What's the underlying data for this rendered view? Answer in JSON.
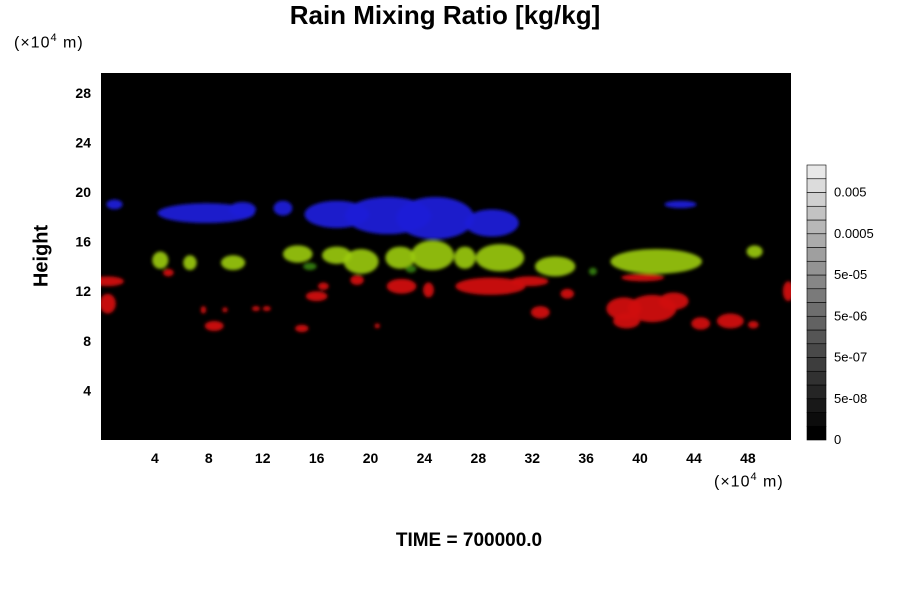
{
  "title": "Rain Mixing Ratio [kg/kg]",
  "y_unit": {
    "prefix": "(×10",
    "exp": "4",
    "suffix": " m)"
  },
  "x_unit": {
    "prefix": "(×10",
    "exp": "4",
    "suffix": " m)"
  },
  "time_label": "TIME = 700000.0",
  "colors": {
    "background": "#000000",
    "blue": "#1b1bd6",
    "yellow_green": "#9ccc12",
    "green": "#3a8a0c",
    "red": "#d01010"
  },
  "chart_data": {
    "type": "heatmap",
    "title": "Rain Mixing Ratio [kg/kg]",
    "xlabel": "",
    "ylabel": "Height",
    "xlim": [
      0,
      51.2
    ],
    "ylim": [
      0,
      29.6
    ],
    "xticks": [
      4,
      8,
      12,
      16,
      20,
      24,
      28,
      32,
      36,
      40,
      44,
      48
    ],
    "yticks": [
      4,
      8,
      12,
      16,
      20,
      24,
      28
    ],
    "grid": false,
    "colorbar": {
      "levels": 20,
      "tick_labels": [
        "0",
        "5e-08",
        "5e-07",
        "5e-06",
        "5e-05",
        "0.0005",
        "0.005"
      ],
      "label_level_index": [
        0,
        3,
        6,
        9,
        12,
        15,
        18
      ]
    },
    "regions": [
      {
        "name": "blue",
        "color": "#1b1bd6",
        "opacity": 0.95,
        "blobs": [
          {
            "x": 1.0,
            "y": 19.0,
            "rx": 0.6,
            "ry": 0.4
          },
          {
            "x": 7.8,
            "y": 18.3,
            "rx": 3.6,
            "ry": 0.8
          },
          {
            "x": 10.5,
            "y": 18.6,
            "rx": 1.0,
            "ry": 0.6
          },
          {
            "x": 13.5,
            "y": 18.7,
            "rx": 0.7,
            "ry": 0.6
          },
          {
            "x": 17.5,
            "y": 18.2,
            "rx": 2.4,
            "ry": 1.1
          },
          {
            "x": 21.3,
            "y": 18.1,
            "rx": 3.2,
            "ry": 1.5
          },
          {
            "x": 24.8,
            "y": 17.9,
            "rx": 2.9,
            "ry": 1.7
          },
          {
            "x": 29.0,
            "y": 17.5,
            "rx": 2.0,
            "ry": 1.1
          },
          {
            "x": 43.0,
            "y": 19.0,
            "rx": 1.2,
            "ry": 0.3
          }
        ]
      },
      {
        "name": "yellow-green",
        "color": "#9ccc12",
        "opacity": 0.9,
        "blobs": [
          {
            "x": 4.4,
            "y": 14.5,
            "rx": 0.6,
            "ry": 0.7
          },
          {
            "x": 6.6,
            "y": 14.3,
            "rx": 0.5,
            "ry": 0.6
          },
          {
            "x": 9.8,
            "y": 14.3,
            "rx": 0.9,
            "ry": 0.6
          },
          {
            "x": 14.6,
            "y": 15.0,
            "rx": 1.1,
            "ry": 0.7
          },
          {
            "x": 17.5,
            "y": 14.9,
            "rx": 1.1,
            "ry": 0.7
          },
          {
            "x": 19.3,
            "y": 14.4,
            "rx": 1.3,
            "ry": 1.0
          },
          {
            "x": 22.2,
            "y": 14.7,
            "rx": 1.1,
            "ry": 0.9
          },
          {
            "x": 24.6,
            "y": 14.9,
            "rx": 1.6,
            "ry": 1.2
          },
          {
            "x": 27.0,
            "y": 14.7,
            "rx": 0.8,
            "ry": 0.9
          },
          {
            "x": 29.6,
            "y": 14.7,
            "rx": 1.8,
            "ry": 1.1
          },
          {
            "x": 33.7,
            "y": 14.0,
            "rx": 1.5,
            "ry": 0.8
          },
          {
            "x": 41.2,
            "y": 14.4,
            "rx": 3.4,
            "ry": 1.0
          },
          {
            "x": 48.5,
            "y": 15.2,
            "rx": 0.6,
            "ry": 0.5
          }
        ]
      },
      {
        "name": "green",
        "color": "#3a8a0c",
        "opacity": 0.85,
        "blobs": [
          {
            "x": 15.5,
            "y": 14.0,
            "rx": 0.5,
            "ry": 0.3
          },
          {
            "x": 23.0,
            "y": 13.8,
            "rx": 0.4,
            "ry": 0.3
          },
          {
            "x": 36.5,
            "y": 13.6,
            "rx": 0.3,
            "ry": 0.3
          }
        ]
      },
      {
        "name": "red",
        "color": "#d01010",
        "opacity": 0.95,
        "blobs": [
          {
            "x": 0.5,
            "y": 12.8,
            "rx": 1.2,
            "ry": 0.4
          },
          {
            "x": 0.5,
            "y": 11.0,
            "rx": 0.6,
            "ry": 0.8
          },
          {
            "x": 5.0,
            "y": 13.5,
            "rx": 0.4,
            "ry": 0.3
          },
          {
            "x": 7.6,
            "y": 10.5,
            "rx": 0.2,
            "ry": 0.3
          },
          {
            "x": 8.4,
            "y": 9.2,
            "rx": 0.7,
            "ry": 0.4
          },
          {
            "x": 9.2,
            "y": 10.5,
            "rx": 0.2,
            "ry": 0.2
          },
          {
            "x": 11.5,
            "y": 10.6,
            "rx": 0.3,
            "ry": 0.2
          },
          {
            "x": 12.3,
            "y": 10.6,
            "rx": 0.3,
            "ry": 0.2
          },
          {
            "x": 14.9,
            "y": 9.0,
            "rx": 0.5,
            "ry": 0.3
          },
          {
            "x": 16.0,
            "y": 11.6,
            "rx": 0.8,
            "ry": 0.4
          },
          {
            "x": 16.5,
            "y": 12.4,
            "rx": 0.4,
            "ry": 0.3
          },
          {
            "x": 19.0,
            "y": 12.9,
            "rx": 0.5,
            "ry": 0.4
          },
          {
            "x": 20.5,
            "y": 9.2,
            "rx": 0.2,
            "ry": 0.2
          },
          {
            "x": 22.3,
            "y": 12.4,
            "rx": 1.1,
            "ry": 0.6
          },
          {
            "x": 24.3,
            "y": 12.1,
            "rx": 0.4,
            "ry": 0.6
          },
          {
            "x": 28.9,
            "y": 12.4,
            "rx": 2.6,
            "ry": 0.7
          },
          {
            "x": 31.8,
            "y": 12.8,
            "rx": 1.4,
            "ry": 0.4
          },
          {
            "x": 32.6,
            "y": 10.3,
            "rx": 0.7,
            "ry": 0.5
          },
          {
            "x": 34.6,
            "y": 11.8,
            "rx": 0.5,
            "ry": 0.4
          },
          {
            "x": 38.8,
            "y": 10.6,
            "rx": 1.3,
            "ry": 0.9
          },
          {
            "x": 39.0,
            "y": 9.6,
            "rx": 1.0,
            "ry": 0.6
          },
          {
            "x": 40.9,
            "y": 10.6,
            "rx": 1.8,
            "ry": 1.1
          },
          {
            "x": 42.5,
            "y": 11.2,
            "rx": 1.1,
            "ry": 0.7
          },
          {
            "x": 40.2,
            "y": 13.1,
            "rx": 1.6,
            "ry": 0.3
          },
          {
            "x": 44.5,
            "y": 9.4,
            "rx": 0.7,
            "ry": 0.5
          },
          {
            "x": 46.7,
            "y": 9.6,
            "rx": 1.0,
            "ry": 0.6
          },
          {
            "x": 48.4,
            "y": 9.3,
            "rx": 0.4,
            "ry": 0.3
          },
          {
            "x": 51.0,
            "y": 12.0,
            "rx": 0.4,
            "ry": 0.8
          }
        ]
      }
    ]
  }
}
